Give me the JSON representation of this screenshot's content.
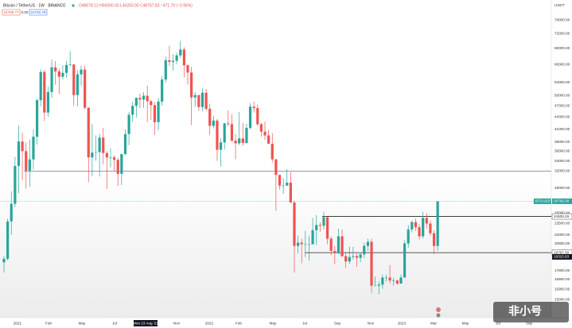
{
  "header": {
    "symbol": "Bitcoin / TetherUS · 1W · BINANCE",
    "ohlc": "O48078.12 H50000.00 L46250.00 C48767.83 −471.79 (−0.96%)",
    "sell": "24799.77",
    "spread": "0.00",
    "buy": "24792.78",
    "currency": "USDT",
    "watermark": "非小号"
  },
  "chart_data": {
    "type": "candlestick",
    "log": true,
    "up_color": "#26a69a",
    "down_color": "#ef5350",
    "ylim": [
      13500,
      87700
    ],
    "yticks": [
      {
        "value": 78000,
        "label": "78000.00"
      },
      {
        "value": 72000,
        "label": "72000.00"
      },
      {
        "value": 66000,
        "label": "66000.00"
      },
      {
        "value": 60000,
        "label": "60000.00"
      },
      {
        "value": 54000,
        "label": "54000.00"
      },
      {
        "value": 50000,
        "label": "50000.00"
      },
      {
        "value": 47000,
        "label": "47000.00"
      },
      {
        "value": 44000,
        "label": "44000.00"
      },
      {
        "value": 41000,
        "label": "41000.00"
      },
      {
        "value": 38000,
        "label": "38000.00"
      },
      {
        "value": 36000,
        "label": "36000.00"
      },
      {
        "value": 34000,
        "label": "34000.00"
      },
      {
        "value": 32000,
        "label": "32000.00"
      },
      {
        "value": 29000,
        "label": "29000.00"
      },
      {
        "value": 27000,
        "label": "27000.00"
      },
      {
        "value": 25000,
        "label": "25000.00"
      },
      {
        "value": 23500,
        "label": "23500.00"
      },
      {
        "value": 22000,
        "label": "22000.00"
      },
      {
        "value": 20900,
        "label": "20900.00"
      },
      {
        "value": 17800,
        "label": "17800.00"
      },
      {
        "value": 16900,
        "label": "16900.00"
      },
      {
        "value": 15950,
        "label": "15950.00"
      },
      {
        "value": 15000,
        "label": "15000.00"
      }
    ],
    "x_labels": [
      "2021",
      "Feb",
      "May",
      "Jul",
      "Mon 23 Aug '21",
      "Nov",
      "2022",
      "Feb",
      "May",
      "Jul",
      "Sep",
      "Nov",
      "2023",
      "Mar",
      "May",
      "Jul",
      "Sep"
    ],
    "last_price": {
      "name": "BTCUSDT",
      "value": 26799.38,
      "label": "26799.38"
    },
    "hlines": [
      {
        "value": 32000,
        "color": "#7b68b8"
      },
      {
        "value": 24505.26,
        "label": "24505.26",
        "color": "#222222"
      },
      {
        "value": 19797.3,
        "label": "19797.30",
        "color": "#222222"
      }
    ],
    "extra_label": {
      "value": 19315.83,
      "label": "19315.83"
    },
    "ohlc": [
      [
        18700,
        19400,
        17600,
        19100
      ],
      [
        19100,
        24200,
        18900,
        23800
      ],
      [
        23800,
        28400,
        22000,
        26400
      ],
      [
        26400,
        34800,
        25900,
        33000
      ],
      [
        33000,
        41900,
        28100,
        38100
      ],
      [
        38100,
        40100,
        30400,
        36000
      ],
      [
        36000,
        37900,
        28900,
        32100
      ],
      [
        32100,
        38500,
        29200,
        34300
      ],
      [
        34300,
        40900,
        32300,
        39200
      ],
      [
        39200,
        49000,
        37400,
        48600
      ],
      [
        48600,
        58300,
        46900,
        57400
      ],
      [
        57400,
        58000,
        43000,
        45200
      ],
      [
        45200,
        52600,
        44100,
        51000
      ],
      [
        51000,
        61800,
        49300,
        59000
      ],
      [
        59000,
        61200,
        53300,
        57600
      ],
      [
        57600,
        58600,
        50400,
        55800
      ],
      [
        55800,
        59800,
        54900,
        57100
      ],
      [
        57100,
        61200,
        55500,
        59800
      ],
      [
        59800,
        64900,
        59300,
        60000
      ],
      [
        60000,
        60000,
        47000,
        50100
      ],
      [
        50100,
        57900,
        46900,
        56600
      ],
      [
        56600,
        59600,
        52900,
        58200
      ],
      [
        58200,
        59600,
        46000,
        46500
      ],
      [
        46500,
        46600,
        30000,
        34700
      ],
      [
        34700,
        42200,
        31100,
        35700
      ],
      [
        35700,
        39500,
        34000,
        35800
      ],
      [
        35800,
        39900,
        31000,
        39000
      ],
      [
        39000,
        41300,
        33300,
        35600
      ],
      [
        35600,
        36000,
        28800,
        34700
      ],
      [
        34700,
        36600,
        32700,
        34700
      ],
      [
        34700,
        35100,
        32000,
        34200
      ],
      [
        34200,
        34600,
        29300,
        31500
      ],
      [
        31500,
        35400,
        29500,
        35400
      ],
      [
        35400,
        40900,
        35100,
        39800
      ],
      [
        39800,
        45300,
        37300,
        44600
      ],
      [
        44600,
        48100,
        42800,
        47000
      ],
      [
        47000,
        49300,
        43900,
        49300
      ],
      [
        49300,
        50500,
        46400,
        48800
      ],
      [
        48800,
        51000,
        46500,
        49900
      ],
      [
        49900,
        52900,
        42800,
        48300
      ],
      [
        48300,
        48800,
        43300,
        47200
      ],
      [
        47200,
        48000,
        39600,
        42700
      ],
      [
        42700,
        49200,
        40800,
        48200
      ],
      [
        48200,
        56000,
        47100,
        54900
      ],
      [
        54900,
        62900,
        53900,
        61500
      ],
      [
        61500,
        67000,
        59500,
        60900
      ],
      [
        60900,
        63700,
        57800,
        61300
      ],
      [
        61300,
        64300,
        60100,
        63300
      ],
      [
        63300,
        69000,
        62300,
        65500
      ],
      [
        65500,
        66400,
        55600,
        59700
      ],
      [
        59700,
        60000,
        53300,
        57200
      ],
      [
        57200,
        59100,
        42000,
        49400
      ],
      [
        49400,
        51000,
        46800,
        50100
      ],
      [
        50100,
        50100,
        45600,
        46700
      ],
      [
        46700,
        52100,
        45500,
        50800
      ],
      [
        50800,
        51900,
        45700,
        46200
      ],
      [
        46200,
        47600,
        39600,
        41800
      ],
      [
        41800,
        44400,
        41200,
        43100
      ],
      [
        43100,
        43500,
        34000,
        36300
      ],
      [
        36300,
        38900,
        32900,
        37900
      ],
      [
        37900,
        42500,
        36300,
        42400
      ],
      [
        42400,
        45800,
        41700,
        42200
      ],
      [
        42200,
        44800,
        38000,
        38300
      ],
      [
        38300,
        39800,
        34300,
        37700
      ],
      [
        37700,
        45400,
        37300,
        38800
      ],
      [
        38800,
        42500,
        37200,
        37800
      ],
      [
        37800,
        42300,
        37600,
        41300
      ],
      [
        41300,
        47700,
        40900,
        46800
      ],
      [
        46800,
        48200,
        45200,
        46400
      ],
      [
        46400,
        47400,
        41800,
        42200
      ],
      [
        42200,
        42500,
        39200,
        40400
      ],
      [
        40400,
        42900,
        38500,
        39500
      ],
      [
        39500,
        40800,
        37700,
        37600
      ],
      [
        37600,
        40000,
        33700,
        34300
      ],
      [
        34300,
        34400,
        25300,
        31300
      ],
      [
        31300,
        31300,
        28700,
        29400
      ],
      [
        29400,
        30700,
        28000,
        29400
      ],
      [
        29400,
        32400,
        29300,
        29900
      ],
      [
        29900,
        31800,
        26600,
        26600
      ],
      [
        26600,
        26900,
        17600,
        20600
      ],
      [
        20600,
        21900,
        19700,
        21000
      ],
      [
        21000,
        21500,
        18600,
        20800
      ],
      [
        20800,
        22500,
        19300,
        20800
      ],
      [
        20800,
        21900,
        18900,
        20800
      ],
      [
        20800,
        24300,
        20800,
        22600
      ],
      [
        22600,
        24700,
        20700,
        23300
      ],
      [
        23300,
        23700,
        22400,
        23200
      ],
      [
        23200,
        25200,
        22700,
        24400
      ],
      [
        24400,
        24500,
        20800,
        21500
      ],
      [
        21500,
        21800,
        19500,
        20000
      ],
      [
        20000,
        20600,
        18500,
        19800
      ],
      [
        19800,
        22800,
        19600,
        21800
      ],
      [
        21800,
        22700,
        19300,
        19400
      ],
      [
        19400,
        19900,
        18100,
        18800
      ],
      [
        18800,
        20500,
        18500,
        19300
      ],
      [
        19300,
        20500,
        19000,
        19400
      ],
      [
        19400,
        19700,
        18200,
        19200
      ],
      [
        19200,
        19700,
        18700,
        19600
      ],
      [
        19600,
        21000,
        19200,
        20600
      ],
      [
        20600,
        21500,
        20000,
        21100
      ],
      [
        21100,
        21500,
        15600,
        16300
      ],
      [
        16300,
        17200,
        16300,
        16300
      ],
      [
        16300,
        16700,
        15500,
        16400
      ],
      [
        16400,
        17400,
        16000,
        17100
      ],
      [
        17100,
        17400,
        16700,
        17100
      ],
      [
        17100,
        18400,
        16500,
        16800
      ],
      [
        16800,
        17100,
        16300,
        16800
      ],
      [
        16800,
        16900,
        16400,
        16500
      ],
      [
        16500,
        17400,
        16500,
        17100
      ],
      [
        17100,
        21300,
        17100,
        20900
      ],
      [
        20900,
        23300,
        20400,
        22700
      ],
      [
        22700,
        23900,
        22300,
        23700
      ],
      [
        23700,
        24200,
        22500,
        23000
      ],
      [
        23000,
        23400,
        21400,
        21800
      ],
      [
        21800,
        25200,
        21500,
        24300
      ],
      [
        24300,
        25000,
        22800,
        23500
      ],
      [
        23500,
        23900,
        21900,
        22200
      ],
      [
        22200,
        22600,
        19600,
        20600
      ],
      [
        20600,
        26800,
        20000,
        26800
      ]
    ]
  }
}
